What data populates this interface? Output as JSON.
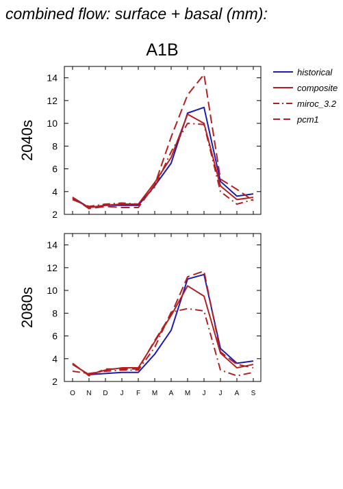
{
  "page_title": "combined flow: surface + basal (mm):",
  "chart_data": {
    "type": "line",
    "scenario": "A1B",
    "categories": [
      "O",
      "N",
      "D",
      "J",
      "F",
      "M",
      "A",
      "M",
      "J",
      "J",
      "A",
      "S"
    ],
    "ylim": [
      2,
      15
    ],
    "yticks": [
      2,
      4,
      6,
      8,
      10,
      12,
      14
    ],
    "grid": false,
    "legend_position": "right",
    "legend": [
      {
        "label": "historical",
        "color": "#1a1ab4",
        "dash": "solid"
      },
      {
        "label": "composite",
        "color": "#b41e1e",
        "dash": "solid"
      },
      {
        "label": "miroc_3.2",
        "color": "#b41e1e",
        "dash": "dash-dot"
      },
      {
        "label": "pcm1",
        "color": "#b41e1e",
        "dash": "dashed"
      }
    ],
    "panels": [
      {
        "label": "2040s",
        "series": [
          {
            "name": "historical",
            "values": [
              3.5,
              2.6,
              2.8,
              2.8,
              2.8,
              4.5,
              6.5,
              10.9,
              11.4,
              4.9,
              3.6,
              3.8
            ]
          },
          {
            "name": "composite",
            "values": [
              3.4,
              2.6,
              2.8,
              2.9,
              2.9,
              4.8,
              7.0,
              10.8,
              10.0,
              4.5,
              3.3,
              3.5
            ]
          },
          {
            "name": "miroc_3.2",
            "values": [
              3.3,
              2.7,
              2.9,
              3.0,
              2.9,
              4.4,
              7.5,
              10.0,
              9.9,
              4.0,
              2.9,
              3.3
            ]
          },
          {
            "name": "pcm1",
            "values": [
              3.5,
              2.5,
              2.7,
              2.6,
              2.6,
              4.6,
              8.8,
              12.5,
              14.3,
              5.1,
              4.2,
              3.2
            ]
          }
        ]
      },
      {
        "label": "2080s",
        "series": [
          {
            "name": "historical",
            "values": [
              3.5,
              2.6,
              2.7,
              2.8,
              2.8,
              4.4,
              6.5,
              11.0,
              11.4,
              4.9,
              3.6,
              3.8
            ]
          },
          {
            "name": "composite",
            "values": [
              3.5,
              2.6,
              3.0,
              3.2,
              3.2,
              5.5,
              7.8,
              10.4,
              9.5,
              4.5,
              3.2,
              3.5
            ]
          },
          {
            "name": "miroc_3.2",
            "values": [
              2.9,
              2.7,
              2.9,
              3.0,
              3.0,
              5.0,
              8.1,
              8.4,
              8.2,
              3.0,
              2.5,
              2.8
            ]
          },
          {
            "name": "pcm1",
            "values": [
              3.6,
              2.5,
              3.1,
              3.1,
              3.1,
              5.6,
              7.9,
              11.2,
              11.7,
              4.6,
              3.5,
              3.2
            ]
          }
        ]
      }
    ]
  }
}
